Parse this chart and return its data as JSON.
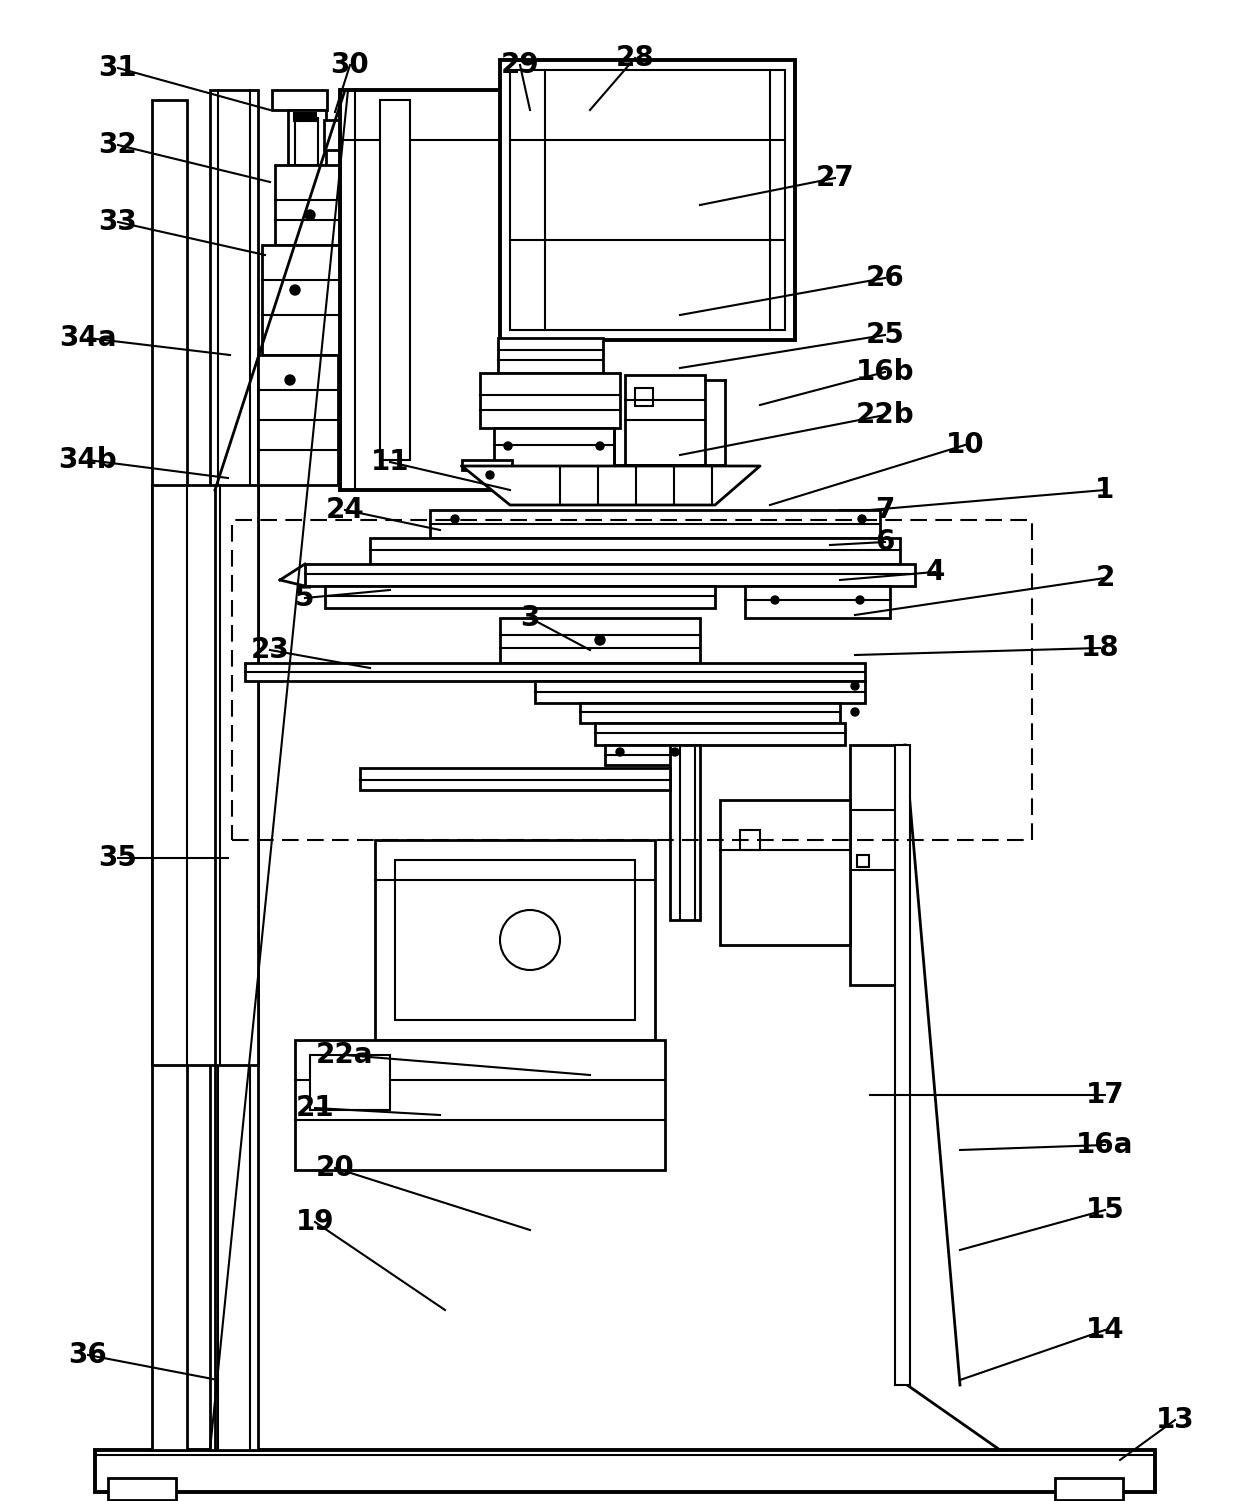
{
  "fig_width": 12.4,
  "fig_height": 15.01,
  "bg_color": "#ffffff",
  "lc": "#000000",
  "annotations": [
    [
      "1",
      1105,
      490,
      870,
      510
    ],
    [
      "2",
      1105,
      578,
      855,
      615
    ],
    [
      "3",
      530,
      618,
      590,
      650
    ],
    [
      "4",
      935,
      572,
      840,
      580
    ],
    [
      "5",
      305,
      598,
      390,
      590
    ],
    [
      "6",
      885,
      542,
      830,
      545
    ],
    [
      "7",
      885,
      510,
      840,
      510
    ],
    [
      "10",
      965,
      445,
      770,
      505
    ],
    [
      "11",
      390,
      462,
      510,
      490
    ],
    [
      "13",
      1175,
      1420,
      1120,
      1460
    ],
    [
      "14",
      1105,
      1330,
      960,
      1380
    ],
    [
      "15",
      1105,
      1210,
      960,
      1250
    ],
    [
      "16a",
      1105,
      1145,
      960,
      1150
    ],
    [
      "16b",
      885,
      372,
      760,
      405
    ],
    [
      "17",
      1105,
      1095,
      870,
      1095
    ],
    [
      "18",
      1100,
      648,
      855,
      655
    ],
    [
      "19",
      315,
      1222,
      445,
      1310
    ],
    [
      "20",
      335,
      1168,
      530,
      1230
    ],
    [
      "21",
      315,
      1108,
      440,
      1115
    ],
    [
      "22a",
      345,
      1055,
      590,
      1075
    ],
    [
      "22b",
      885,
      415,
      680,
      455
    ],
    [
      "23",
      270,
      650,
      370,
      668
    ],
    [
      "24",
      345,
      510,
      440,
      530
    ],
    [
      "25",
      885,
      335,
      680,
      368
    ],
    [
      "26",
      885,
      278,
      680,
      315
    ],
    [
      "27",
      835,
      178,
      700,
      205
    ],
    [
      "28",
      635,
      58,
      590,
      110
    ],
    [
      "29",
      520,
      65,
      530,
      110
    ],
    [
      "30",
      350,
      65,
      335,
      112
    ],
    [
      "31",
      118,
      68,
      270,
      110
    ],
    [
      "32",
      118,
      145,
      270,
      182
    ],
    [
      "33",
      118,
      222,
      265,
      255
    ],
    [
      "34a",
      88,
      338,
      230,
      355
    ],
    [
      "34b",
      88,
      460,
      228,
      478
    ],
    [
      "35",
      118,
      858,
      228,
      858
    ],
    [
      "36",
      88,
      1355,
      218,
      1380
    ]
  ]
}
